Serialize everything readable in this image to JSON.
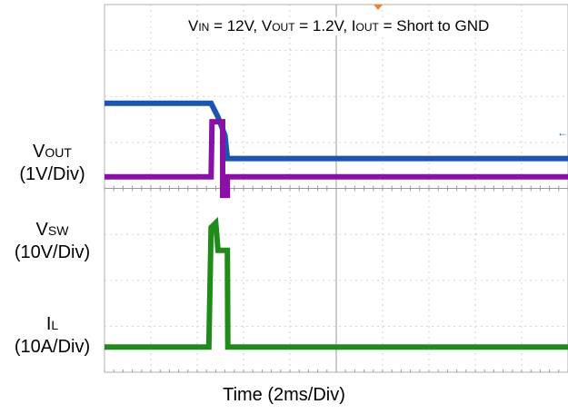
{
  "chart_data": {
    "type": "line",
    "conditions": {
      "vin_sym": "V",
      "vin_sub": "IN",
      "vin_val": " = 12V, ",
      "vout_sym": "V",
      "vout_sub": "OUT",
      "vout_val": " = 1.2V, ",
      "iout_sym": "I",
      "iout_sub": "OUT",
      "iout_val": " = Short to GND"
    },
    "xlabel": "Time (2ms/Div)",
    "divisions": {
      "x": 10,
      "y": 8
    },
    "trigger_div": 2.25,
    "series": [
      {
        "key": "vout",
        "sym": "V",
        "sub": "OUT",
        "scale": "(1V/Div)",
        "color": "#1a56b0",
        "points": [
          [
            0,
            1.2
          ],
          [
            2.3,
            1.2
          ],
          [
            2.45,
            0.9
          ],
          [
            2.6,
            0.5
          ],
          [
            2.65,
            0.0
          ],
          [
            10,
            0.0
          ]
        ]
      },
      {
        "key": "vsw",
        "sym": "V",
        "sub": "SW",
        "scale": "(10V/Div)",
        "color": "#8b10a8",
        "points": [
          [
            0,
            12
          ],
          [
            2.3,
            12
          ],
          [
            2.32,
            24
          ],
          [
            2.55,
            24
          ],
          [
            2.55,
            8
          ],
          [
            2.65,
            8
          ],
          [
            2.65,
            12
          ],
          [
            10,
            12
          ]
        ]
      },
      {
        "key": "il",
        "sym": "I",
        "sub": "L",
        "scale": "(10A/Div)",
        "color": "#1f8c1a",
        "points": [
          [
            0,
            0
          ],
          [
            2.25,
            0
          ],
          [
            2.3,
            26
          ],
          [
            2.4,
            27
          ],
          [
            2.45,
            21
          ],
          [
            2.65,
            21
          ],
          [
            2.66,
            0
          ],
          [
            10,
            0
          ]
        ]
      }
    ]
  }
}
